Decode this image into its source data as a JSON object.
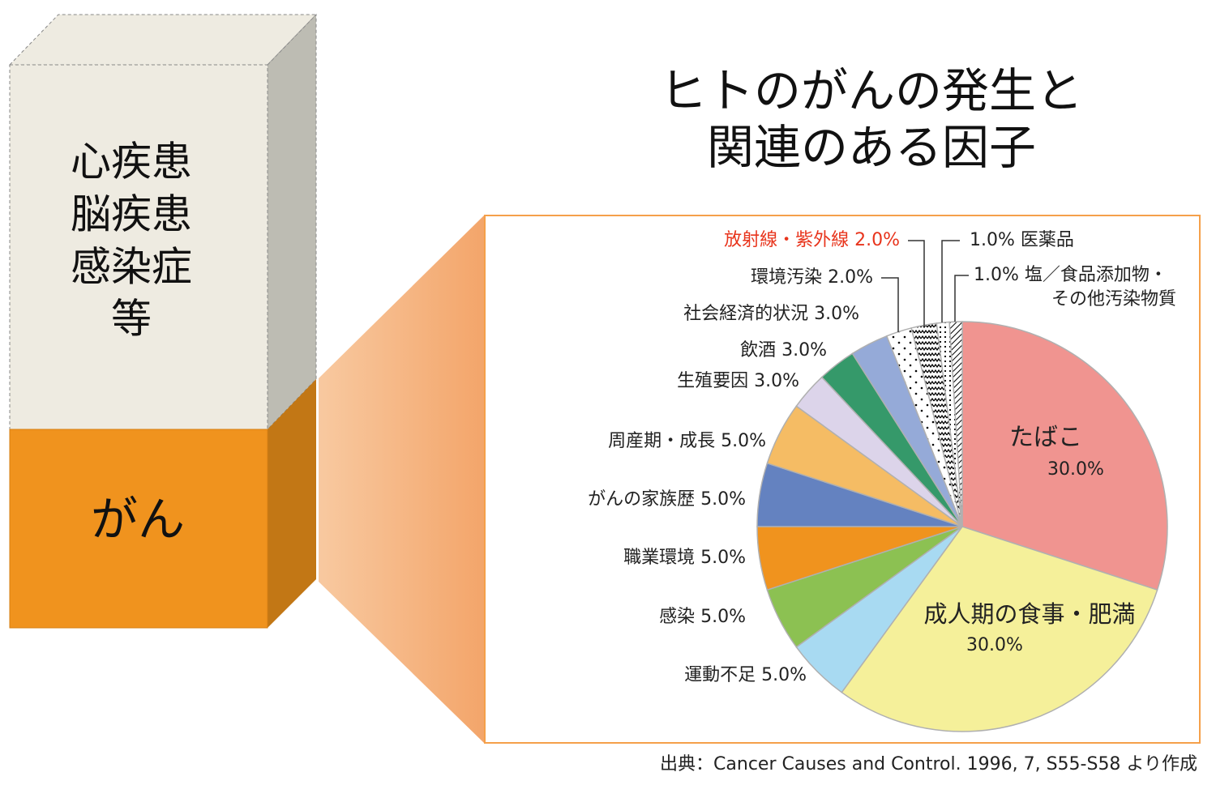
{
  "left_block": {
    "other_lines": [
      "心疾患",
      "脳疾患",
      "感染症",
      "等"
    ],
    "cancer_label": "がん",
    "colors": {
      "other": "#eeebe1",
      "other_side": "#bdbcb3",
      "cancer": "#f0931e",
      "cancer_side": "#c27715"
    }
  },
  "chart_data": {
    "type": "pie",
    "title_lines": [
      "ヒトのがんの発生と",
      "関連のある因子"
    ],
    "start": "12 o'clock, clockwise",
    "slices": [
      {
        "label": "たばこ",
        "value": 30.0,
        "value_label": "30.0%",
        "color": "#f09490"
      },
      {
        "label": "成人期の食事・肥満",
        "value": 30.0,
        "value_label": "30.0%",
        "color": "#f5f09a"
      },
      {
        "label": "運動不足",
        "value": 5.0,
        "value_label": "運動不足 5.0%",
        "color": "#a8daf2"
      },
      {
        "label": "感染",
        "value": 5.0,
        "value_label": "感染 5.0%",
        "color": "#8cc152"
      },
      {
        "label": "職業環境",
        "value": 5.0,
        "value_label": "職業環境 5.0%",
        "color": "#f0931e"
      },
      {
        "label": "がんの家族歴",
        "value": 5.0,
        "value_label": "がんの家族歴 5.0%",
        "color": "#6482c0"
      },
      {
        "label": "周産期・成長",
        "value": 5.0,
        "value_label": "周産期・成長 5.0%",
        "color": "#f5bc64"
      },
      {
        "label": "生殖要因",
        "value": 3.0,
        "value_label": "生殖要因 3.0%",
        "color": "#dcd4ea"
      },
      {
        "label": "飲酒",
        "value": 3.0,
        "value_label": "飲酒 3.0%",
        "color": "#35996a"
      },
      {
        "label": "社会経済的状況",
        "value": 3.0,
        "value_label": "社会経済的状況 3.0%",
        "color": "#95aad8"
      },
      {
        "label": "環境汚染",
        "value": 2.0,
        "value_label": "環境汚染 2.0%",
        "color": "pattern-sparse-dots"
      },
      {
        "label": "放射線・紫外線",
        "value": 2.0,
        "value_label": "放射線・紫外線 2.0%",
        "color": "pattern-zigzag",
        "label_color": "#e8341c"
      },
      {
        "label": "医薬品",
        "value": 1.0,
        "value_label": "1.0% 医薬品",
        "color": "pattern-dense-dots"
      },
      {
        "label": "塩／食品添加物・その他汚染物質",
        "value": 1.0,
        "value_label": "1.0% 塩／食品添加物・",
        "value_label_line2": "その他汚染物質",
        "color": "pattern-hatch"
      }
    ],
    "frame_color": "#f5a04a"
  },
  "source": "出典：Cancer Causes and Control. 1996, 7, S55-S58 より作成"
}
